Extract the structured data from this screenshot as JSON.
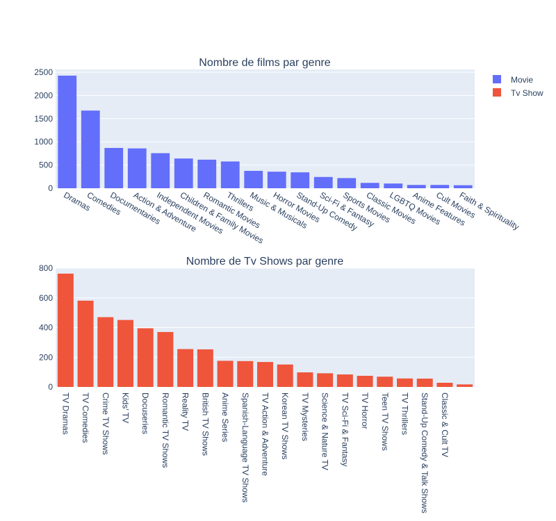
{
  "chart_data": [
    {
      "type": "bar",
      "title": "Nombre de films par genre",
      "xlabel": "",
      "ylabel": "",
      "ylim": [
        0,
        2500
      ],
      "yticks": [
        0,
        500,
        1000,
        1500,
        2000,
        2500
      ],
      "grid": true,
      "legend": "top-right",
      "series": [
        {
          "name": "Movie",
          "color": "#636efa",
          "categories": [
            "Dramas",
            "Comedies",
            "Documentaries",
            "Action & Adventure",
            "Independent Movies",
            "Children & Family Movies",
            "Romantic Movies",
            "Thrillers",
            "Music & Musicals",
            "Horror Movies",
            "Stand-Up Comedy",
            "Sci-Fi & Fantasy",
            "Sports Movies",
            "Classic Movies",
            "LGBTQ Movies",
            "Anime Features",
            "Cult Movies",
            "Faith & Spirituality"
          ],
          "values": [
            2427,
            1674,
            869,
            859,
            756,
            641,
            616,
            577,
            375,
            357,
            343,
            243,
            219,
            116,
            102,
            71,
            71,
            65
          ]
        }
      ]
    },
    {
      "type": "bar",
      "title": "Nombre de Tv Shows par genre",
      "xlabel": "",
      "ylabel": "",
      "ylim": [
        0,
        800
      ],
      "yticks": [
        0,
        200,
        400,
        600,
        800
      ],
      "grid": true,
      "legend": "top-right",
      "series": [
        {
          "name": "Tv Show",
          "color": "#ef553b",
          "categories": [
            "TV Dramas",
            "TV Comedies",
            "Crime TV Shows",
            "Kids' TV",
            "Docuseries",
            "Romantic TV Shows",
            "Reality TV",
            "British TV Shows",
            "Anime Series",
            "Spanish-Language TV Shows",
            "TV Action & Adventure",
            "Korean TV Shows",
            "TV Mysteries",
            "Science & Nature TV",
            "TV Sci-Fi & Fantasy",
            "TV Horror",
            "Teen TV Shows",
            "TV Thrillers",
            "Stand-Up Comedy & Talk Shows",
            "Classic & Cult TV",
            ""
          ],
          "values": [
            763,
            581,
            470,
            451,
            395,
            370,
            255,
            253,
            176,
            174,
            168,
            151,
            98,
            92,
            84,
            75,
            69,
            57,
            56,
            28,
            17
          ]
        }
      ]
    }
  ]
}
